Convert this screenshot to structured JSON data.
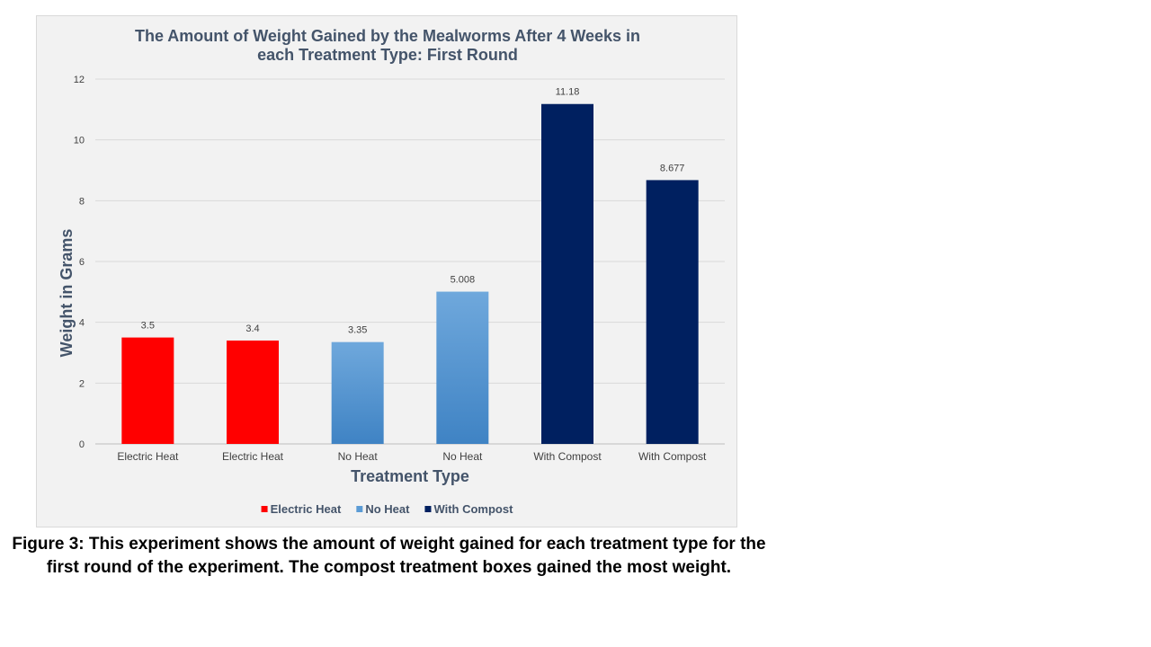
{
  "chart_data": {
    "type": "bar",
    "title_lines": [
      "The Amount of Weight Gained by the Mealworms After 4 Weeks in",
      "each Treatment Type: First Round"
    ],
    "xlabel": "Treatment Type",
    "ylabel": "Weight  in Grams",
    "ylim": [
      0,
      12
    ],
    "yticks": [
      "0",
      "2",
      "4",
      "6",
      "8",
      "10",
      "12"
    ],
    "grid": true,
    "legend_position": "bottom",
    "categories": [
      "Electric Heat",
      "Electric Heat",
      "No Heat",
      "No Heat",
      "With Compost",
      "With Compost"
    ],
    "values": [
      3.5,
      3.4,
      3.35,
      5.008,
      11.18,
      8.677
    ],
    "value_labels": [
      "3.5",
      "3.4",
      "3.35",
      "5.008",
      "11.18",
      "8.677"
    ],
    "bar_groups": [
      "electric",
      "electric",
      "noheat",
      "noheat",
      "compost",
      "compost"
    ],
    "legend": [
      {
        "key": "electric",
        "label": "Electric Heat",
        "color": "#ff0000"
      },
      {
        "key": "noheat",
        "label": "No Heat",
        "color": "#5b9bd5"
      },
      {
        "key": "compost",
        "label": "With Compost",
        "color": "#002060"
      }
    ]
  },
  "caption": "Figure 3:  This experiment shows the amount of weight gained for each treatment type for the first round of the experiment.  The compost treatment boxes gained the most weight."
}
